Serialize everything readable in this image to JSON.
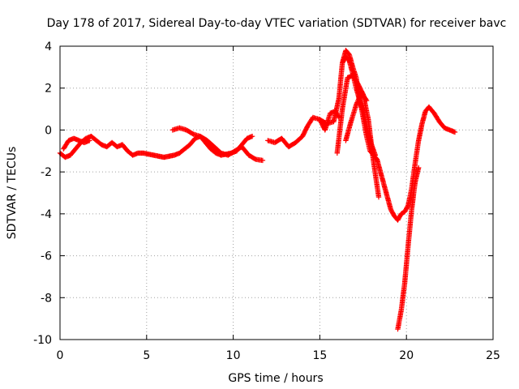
{
  "chart_data": {
    "type": "scatter",
    "title": "Day 178 of 2017, Sidereal Day-to-day VTEC variation (SDTVAR) for receiver bavc",
    "xlabel": "GPS time / hours",
    "ylabel": "SDTVAR / TECUs",
    "xlim": [
      0,
      25
    ],
    "ylim": [
      -10,
      4
    ],
    "xticks": [
      "0",
      "5",
      "10",
      "15",
      "20",
      "25"
    ],
    "yticks": [
      "-10",
      "-8",
      "-6",
      "-4",
      "-2",
      "0",
      "2",
      "4"
    ],
    "grid": true,
    "marker": "+",
    "series_color": "#ff0000",
    "series": [
      {
        "name": "trace-a",
        "x": [
          0.0,
          0.3,
          0.6,
          0.9,
          1.2,
          1.5,
          1.8,
          2.1,
          2.4,
          2.7,
          3.0,
          3.3,
          3.6,
          3.9,
          4.2,
          4.5,
          4.8,
          5.1,
          5.4,
          5.7,
          6.0,
          6.3,
          6.6,
          6.9,
          7.2,
          7.5,
          7.8,
          8.1,
          8.4,
          8.7,
          9.0,
          9.3,
          9.6,
          9.9,
          10.2,
          10.5,
          10.8,
          11.1
        ],
        "y": [
          -1.1,
          -1.3,
          -1.2,
          -0.9,
          -0.6,
          -0.4,
          -0.3,
          -0.5,
          -0.7,
          -0.8,
          -0.6,
          -0.8,
          -0.7,
          -1.0,
          -1.2,
          -1.1,
          -1.1,
          -1.15,
          -1.2,
          -1.25,
          -1.3,
          -1.25,
          -1.2,
          -1.1,
          -0.9,
          -0.7,
          -0.4,
          -0.3,
          -0.6,
          -0.9,
          -1.1,
          -1.2,
          -1.15,
          -1.1,
          -1.0,
          -0.7,
          -0.4,
          -0.3
        ]
      },
      {
        "name": "trace-b",
        "x": [
          0.2,
          0.5,
          0.8,
          1.1,
          1.4,
          1.7
        ],
        "y": [
          -0.9,
          -0.5,
          -0.4,
          -0.5,
          -0.6,
          -0.5
        ]
      },
      {
        "name": "trace-c",
        "x": [
          6.5,
          6.9,
          7.3,
          7.7,
          8.1,
          8.5,
          8.9,
          9.3,
          9.7,
          10.1,
          10.5,
          10.9,
          11.3,
          11.7
        ],
        "y": [
          0.0,
          0.1,
          0.0,
          -0.2,
          -0.3,
          -0.5,
          -0.8,
          -1.1,
          -1.2,
          -1.0,
          -0.8,
          -1.2,
          -1.4,
          -1.45
        ]
      },
      {
        "name": "trace-d",
        "x": [
          12.0,
          12.4,
          12.8,
          13.2,
          13.6,
          14.0,
          14.3,
          14.6,
          15.0,
          15.3,
          15.6,
          15.9,
          16.1
        ],
        "y": [
          -0.5,
          -0.6,
          -0.4,
          -0.8,
          -0.6,
          -0.3,
          0.2,
          0.6,
          0.5,
          0.0,
          0.8,
          0.9,
          0.6
        ]
      },
      {
        "name": "trace-e",
        "x": [
          15.0,
          15.4,
          15.8,
          16.1,
          16.3,
          16.5,
          16.7,
          16.9,
          17.1,
          17.3,
          17.5,
          17.7,
          17.9,
          18.1,
          18.3,
          18.5,
          18.7,
          18.9,
          19.1,
          19.3,
          19.5,
          19.7,
          19.9,
          20.1,
          20.3,
          20.5,
          20.7,
          20.9,
          21.1,
          21.3,
          21.6,
          21.9,
          22.2,
          22.5,
          22.8
        ],
        "y": [
          0.5,
          0.3,
          0.4,
          1.5,
          3.2,
          3.8,
          3.6,
          3.0,
          2.5,
          1.5,
          0.6,
          -0.3,
          -1.0,
          -1.2,
          -1.4,
          -2.0,
          -2.6,
          -3.2,
          -3.8,
          -4.1,
          -4.3,
          -4.0,
          -3.9,
          -3.6,
          -2.8,
          -1.6,
          -0.5,
          0.3,
          0.9,
          1.1,
          0.8,
          0.4,
          0.1,
          0.0,
          -0.1
        ]
      },
      {
        "name": "trace-f",
        "x": [
          16.0,
          16.3,
          16.6,
          16.9,
          17.2,
          17.5,
          17.8,
          18.1,
          18.4
        ],
        "y": [
          -1.1,
          1.0,
          2.5,
          2.6,
          2.2,
          1.7,
          0.5,
          -1.5,
          -3.2
        ]
      },
      {
        "name": "trace-g",
        "x": [
          16.3,
          16.5,
          16.7,
          16.9,
          17.1,
          17.3,
          17.5,
          17.7,
          17.9,
          18.2
        ],
        "y": [
          3.2,
          3.5,
          3.3,
          2.7,
          2.0,
          1.4,
          0.9,
          0.2,
          -0.5,
          -1.2
        ]
      },
      {
        "name": "trace-h",
        "x": [
          16.5,
          16.8,
          17.1,
          17.4,
          17.7
        ],
        "y": [
          -0.5,
          0.4,
          1.2,
          1.8,
          1.4
        ]
      },
      {
        "name": "trace-i",
        "x": [
          19.5,
          19.7,
          19.9,
          20.1,
          20.3,
          20.5,
          20.7
        ],
        "y": [
          -9.5,
          -8.6,
          -7.3,
          -5.5,
          -3.8,
          -2.5,
          -1.8
        ]
      }
    ]
  }
}
